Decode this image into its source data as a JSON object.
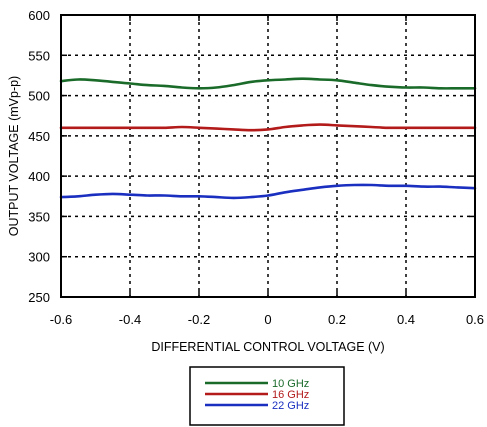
{
  "chart_data": {
    "type": "line",
    "xlabel": "DIFFERENTIAL CONTROL VOLTAGE (V)",
    "ylabel": "OUTPUT VOLTAGE (mVp-p)",
    "xlim": [
      -0.6,
      0.6
    ],
    "ylim": [
      250,
      600
    ],
    "x_ticks": [
      "-0.6",
      "-0.4",
      "-0.2",
      "0",
      "0.2",
      "0.4",
      "0.6"
    ],
    "y_ticks": [
      "250",
      "300",
      "350",
      "400",
      "450",
      "500",
      "550",
      "600"
    ],
    "grid": "dotted",
    "legend_position": "bottom-center",
    "series": [
      {
        "name": "10 GHz",
        "color": "#1a6b2a",
        "x": [
          -0.6,
          -0.55,
          -0.5,
          -0.45,
          -0.4,
          -0.35,
          -0.3,
          -0.25,
          -0.2,
          -0.15,
          -0.1,
          -0.05,
          0,
          0.05,
          0.1,
          0.15,
          0.2,
          0.25,
          0.3,
          0.35,
          0.4,
          0.45,
          0.5,
          0.55,
          0.6
        ],
        "y": [
          518,
          520,
          519,
          517,
          515,
          513,
          512,
          510,
          509,
          510,
          513,
          517,
          519,
          520,
          521,
          520,
          519,
          516,
          513,
          511,
          510,
          510,
          509,
          509,
          509
        ]
      },
      {
        "name": "16 GHz",
        "color": "#b31b1b",
        "x": [
          -0.6,
          -0.55,
          -0.5,
          -0.45,
          -0.4,
          -0.35,
          -0.3,
          -0.25,
          -0.2,
          -0.15,
          -0.1,
          -0.05,
          0,
          0.05,
          0.1,
          0.15,
          0.2,
          0.25,
          0.3,
          0.35,
          0.4,
          0.45,
          0.5,
          0.55,
          0.6
        ],
        "y": [
          460,
          460,
          460,
          460,
          460,
          460,
          460,
          461,
          460,
          459,
          458,
          457,
          458,
          461,
          463,
          464,
          463,
          462,
          461,
          460,
          460,
          460,
          460,
          460,
          460
        ]
      },
      {
        "name": "22 GHz",
        "color": "#1a2fc0",
        "x": [
          -0.6,
          -0.55,
          -0.5,
          -0.45,
          -0.4,
          -0.35,
          -0.3,
          -0.25,
          -0.2,
          -0.15,
          -0.1,
          -0.05,
          0,
          0.05,
          0.1,
          0.15,
          0.2,
          0.25,
          0.3,
          0.35,
          0.4,
          0.45,
          0.5,
          0.55,
          0.6
        ],
        "y": [
          374,
          375,
          377,
          378,
          377,
          376,
          376,
          375,
          375,
          374,
          373,
          374,
          376,
          380,
          383,
          386,
          388,
          389,
          389,
          388,
          388,
          387,
          387,
          386,
          385
        ]
      }
    ]
  }
}
